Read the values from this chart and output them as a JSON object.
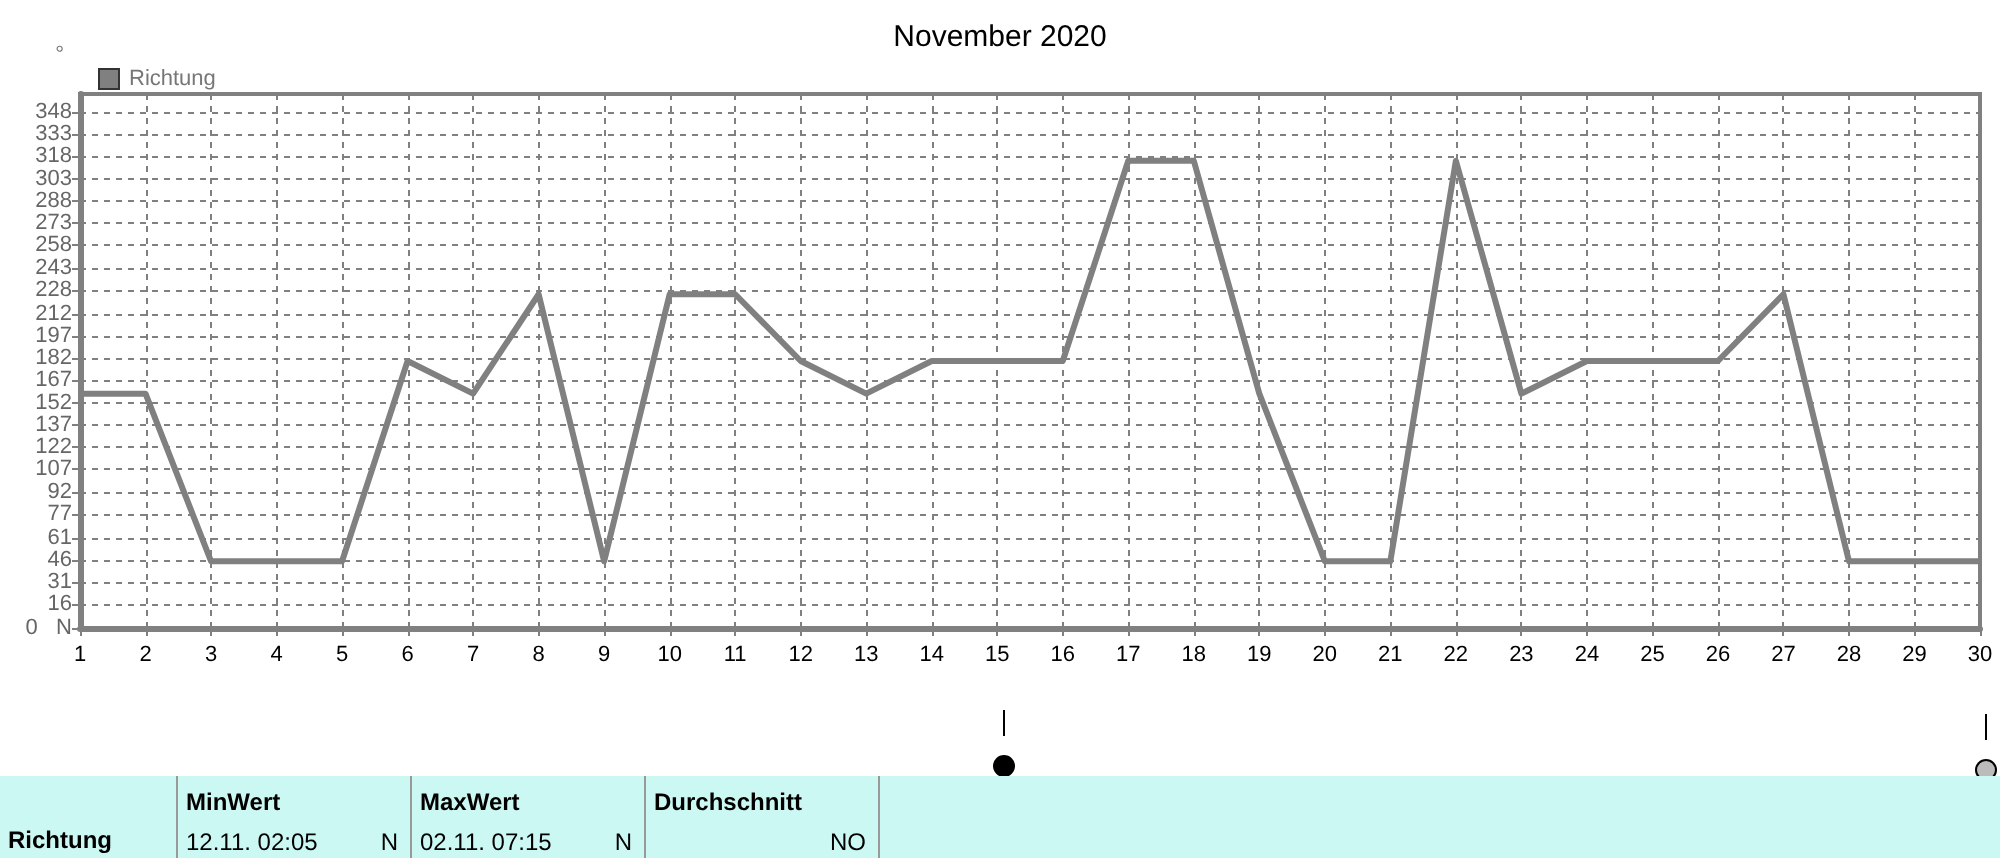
{
  "chart_data": {
    "type": "line",
    "title": "November 2020",
    "ylabel": "°",
    "x": [
      1,
      2,
      3,
      4,
      5,
      6,
      7,
      8,
      9,
      10,
      11,
      12,
      13,
      14,
      15,
      16,
      17,
      18,
      19,
      20,
      21,
      22,
      23,
      24,
      25,
      26,
      27,
      28,
      29,
      30
    ],
    "series": [
      {
        "name": "Richtung",
        "color": "#808080",
        "values": [
          158,
          158,
          45,
          45,
          45,
          180,
          158,
          225,
          45,
          225,
          225,
          180,
          158,
          180,
          180,
          180,
          315,
          315,
          158,
          45,
          45,
          315,
          158,
          180,
          180,
          180,
          225,
          45,
          45,
          45
        ]
      }
    ],
    "xlim": [
      1,
      30
    ],
    "xticks": [
      1,
      2,
      3,
      4,
      5,
      6,
      7,
      8,
      9,
      10,
      11,
      12,
      13,
      14,
      15,
      16,
      17,
      18,
      19,
      20,
      21,
      22,
      23,
      24,
      25,
      26,
      27,
      28,
      29,
      30
    ],
    "ylim": [
      0,
      360
    ],
    "yticks": [
      {
        "value": 0,
        "label": "0   N"
      },
      16,
      31,
      46,
      61,
      77,
      92,
      107,
      122,
      137,
      152,
      167,
      182,
      197,
      212,
      228,
      243,
      258,
      273,
      288,
      303,
      318,
      333,
      348
    ],
    "grid": true,
    "legend": "top left",
    "line_style": "solid",
    "annotations": [
      "Richtung",
      "MinWert",
      "12.11.  02:05",
      "N",
      "MaxWert",
      "02.11.  07:15",
      "N",
      "Durchschnitt",
      "NO"
    ]
  }
}
